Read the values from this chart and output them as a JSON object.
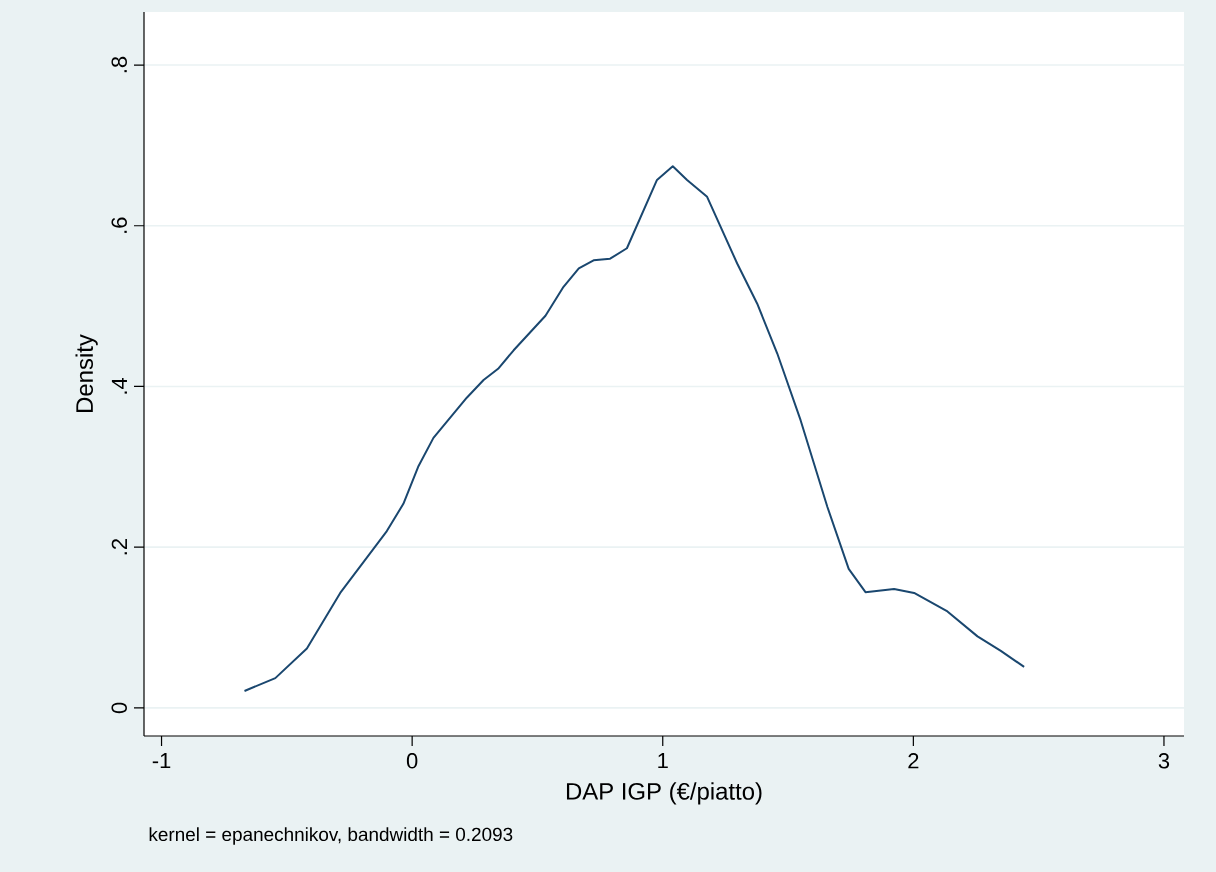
{
  "chart_data": {
    "type": "line",
    "xlabel": "DAP IGP (€/piatto)",
    "ylabel": "Density",
    "annotations": [
      "kernel = epanechnikov, bandwidth = 0.2093"
    ],
    "x": [
      -0.669,
      -0.546,
      -0.42,
      -0.287,
      -0.101,
      -0.035,
      0.024,
      0.085,
      0.218,
      0.285,
      0.343,
      0.405,
      0.532,
      0.604,
      0.665,
      0.724,
      0.79,
      0.857,
      0.977,
      1.04,
      1.097,
      1.177,
      1.297,
      1.377,
      1.457,
      1.55,
      1.657,
      1.742,
      1.809,
      1.923,
      2.003,
      2.136,
      2.256,
      2.349,
      2.442
    ],
    "series": [
      {
        "color": "#1a476f",
        "values": [
          0.021,
          0.037,
          0.074,
          0.143,
          0.22,
          0.254,
          0.3,
          0.336,
          0.386,
          0.408,
          0.422,
          0.445,
          0.488,
          0.524,
          0.547,
          0.557,
          0.559,
          0.572,
          0.657,
          0.674,
          0.657,
          0.636,
          0.553,
          0.503,
          0.441,
          0.358,
          0.25,
          0.173,
          0.144,
          0.148,
          0.143,
          0.12,
          0.089,
          0.071,
          0.051
        ]
      }
    ],
    "xlim": [
      -1.07,
      3.08
    ],
    "ylim": [
      -0.035,
      0.866
    ],
    "xticks": [
      -1,
      0,
      1,
      2,
      3
    ],
    "yticks": [
      0,
      {
        "value": 0.2,
        "label": ".2"
      },
      {
        "value": 0.4,
        "label": ".4"
      },
      {
        "value": 0.6,
        "label": ".6"
      },
      {
        "value": 0.8,
        "label": ".8"
      }
    ],
    "grid": "y"
  }
}
